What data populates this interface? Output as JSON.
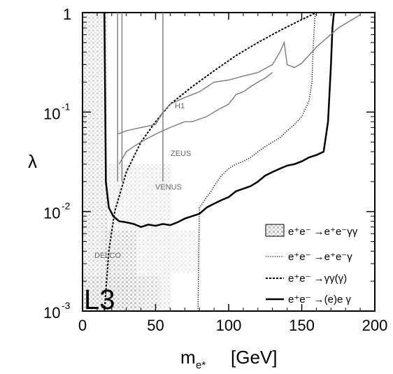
{
  "chart_data": {
    "type": "line",
    "logo": "L3",
    "xlabel": {
      "main": "m",
      "sub": "e*",
      "unit": "[GeV]"
    },
    "ylabel": "λ",
    "xlim": [
      0,
      200
    ],
    "ylim": [
      0.001,
      1
    ],
    "yscale": "log",
    "x_ticks": [
      "0",
      "50",
      "100",
      "150",
      "200"
    ],
    "y_ticks": [
      {
        "base": "10",
        "exp": "-3"
      },
      {
        "base": "10",
        "exp": "-2"
      },
      {
        "base": "10",
        "exp": "-1"
      },
      {
        "base": "1",
        "exp": ""
      }
    ],
    "experiment_labels": {
      "h1": "H1",
      "zeus": "ZEUS",
      "venus": "VENUS",
      "delco": "DELCO"
    },
    "legend": {
      "placement": "bottom-right",
      "entries": [
        {
          "label": "e⁺e⁻ →e⁺e⁻γγ",
          "style": "box"
        },
        {
          "label": "e⁺e⁻ →e⁺e⁻γ",
          "style": "dotted"
        },
        {
          "label": "e⁺e⁻ →γγ(γ)",
          "style": "dashed"
        },
        {
          "label": "e⁺e⁻ →(e)e γ",
          "style": "solid"
        }
      ]
    },
    "series": [
      {
        "style": "solid",
        "x": [
          15,
          16,
          18,
          21,
          25,
          30,
          35,
          40,
          45,
          50,
          55,
          60,
          65,
          70,
          75,
          80,
          85,
          90,
          95,
          100,
          105,
          110,
          115,
          120,
          125,
          130,
          135,
          140,
          145,
          150,
          155,
          160,
          165,
          168,
          170,
          171,
          172
        ],
        "y": [
          1,
          0.02,
          0.011,
          0.009,
          0.008,
          0.0078,
          0.0075,
          0.007,
          0.0074,
          0.0072,
          0.0075,
          0.0073,
          0.0078,
          0.0085,
          0.009,
          0.0095,
          0.011,
          0.012,
          0.013,
          0.014,
          0.016,
          0.017,
          0.018,
          0.02,
          0.023,
          0.025,
          0.027,
          0.029,
          0.03,
          0.032,
          0.035,
          0.037,
          0.04,
          0.08,
          0.3,
          0.7,
          1
        ]
      },
      {
        "style": "dotted",
        "x": [
          79,
          80,
          82,
          85,
          88,
          90,
          95,
          100,
          105,
          110,
          115,
          120,
          125,
          130,
          135,
          140,
          145,
          150,
          155,
          157,
          158,
          159,
          160
        ],
        "y": [
          0.001,
          0.011,
          0.012,
          0.014,
          0.016,
          0.018,
          0.023,
          0.027,
          0.03,
          0.032,
          0.035,
          0.04,
          0.045,
          0.05,
          0.055,
          0.065,
          0.075,
          0.09,
          0.13,
          0.2,
          0.5,
          0.9,
          1
        ]
      },
      {
        "style": "dashed",
        "x": [
          15,
          18,
          22,
          30,
          40,
          50,
          60,
          75,
          90,
          105,
          120,
          135,
          150,
          160
        ],
        "y": [
          0.001,
          0.004,
          0.01,
          0.025,
          0.05,
          0.08,
          0.12,
          0.18,
          0.26,
          0.37,
          0.5,
          0.66,
          0.85,
          1
        ]
      },
      {
        "style": "grey-solid",
        "x": [
          24,
          30,
          40,
          50,
          55,
          60,
          65,
          70,
          75,
          80,
          90,
          100,
          110,
          120,
          130,
          135,
          138,
          140,
          145,
          150,
          160,
          175,
          190
        ],
        "y": [
          0.06,
          0.065,
          0.07,
          0.075,
          0.1,
          0.12,
          0.13,
          0.14,
          0.15,
          0.16,
          0.2,
          0.21,
          0.23,
          0.25,
          0.3,
          0.4,
          0.5,
          0.3,
          0.28,
          0.31,
          0.45,
          0.7,
          0.95
        ]
      },
      {
        "style": "grey-solid",
        "x": [
          25,
          30,
          35,
          40,
          45,
          50,
          55,
          60,
          65,
          70,
          75,
          80,
          85,
          90,
          95,
          100,
          105,
          110,
          115,
          120,
          125,
          130
        ],
        "y": [
          0.03,
          0.04,
          0.045,
          0.05,
          0.055,
          0.06,
          0.065,
          0.07,
          0.075,
          0.08,
          0.08,
          0.085,
          0.09,
          0.1,
          0.11,
          0.12,
          0.15,
          0.16,
          0.18,
          0.2,
          0.22,
          0.25
        ]
      }
    ]
  }
}
